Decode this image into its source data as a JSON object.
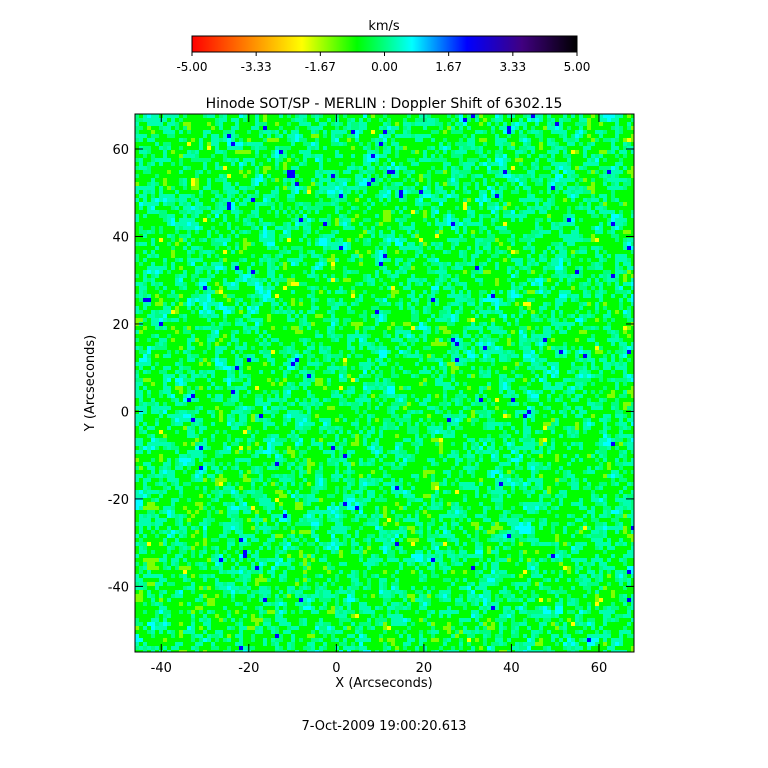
{
  "colorbar": {
    "unit_label": "km/s",
    "ticks": [
      "-5.00",
      "-3.33",
      "-1.67",
      "0.00",
      "1.67",
      "3.33",
      "5.00"
    ],
    "range": [
      -5.0,
      5.0
    ],
    "colormap_stops": [
      "#ff0000",
      "#ff8000",
      "#ffff00",
      "#00ff00",
      "#00ffff",
      "#0000ff",
      "#400080",
      "#000000"
    ]
  },
  "chart_data": {
    "type": "heatmap",
    "title": "Hinode SOT/SP - MERLIN : Doppler Shift of 6302.15",
    "xlabel": "X (Arcseconds)",
    "ylabel": "Y (Arcseconds)",
    "xlim": [
      -46,
      68
    ],
    "ylim": [
      -55,
      68
    ],
    "xticks": [
      -40,
      -20,
      0,
      20,
      40,
      60
    ],
    "yticks": [
      -40,
      -20,
      0,
      20,
      40,
      60
    ],
    "value_unit": "km/s",
    "value_range": [
      -5.0,
      5.0
    ],
    "dominant_values_kms": [
      0.0,
      1.67
    ],
    "sparse_values_kms": [
      -1.67,
      3.33
    ]
  },
  "footer": {
    "timestamp": "7-Oct-2009 19:00:20.613"
  }
}
